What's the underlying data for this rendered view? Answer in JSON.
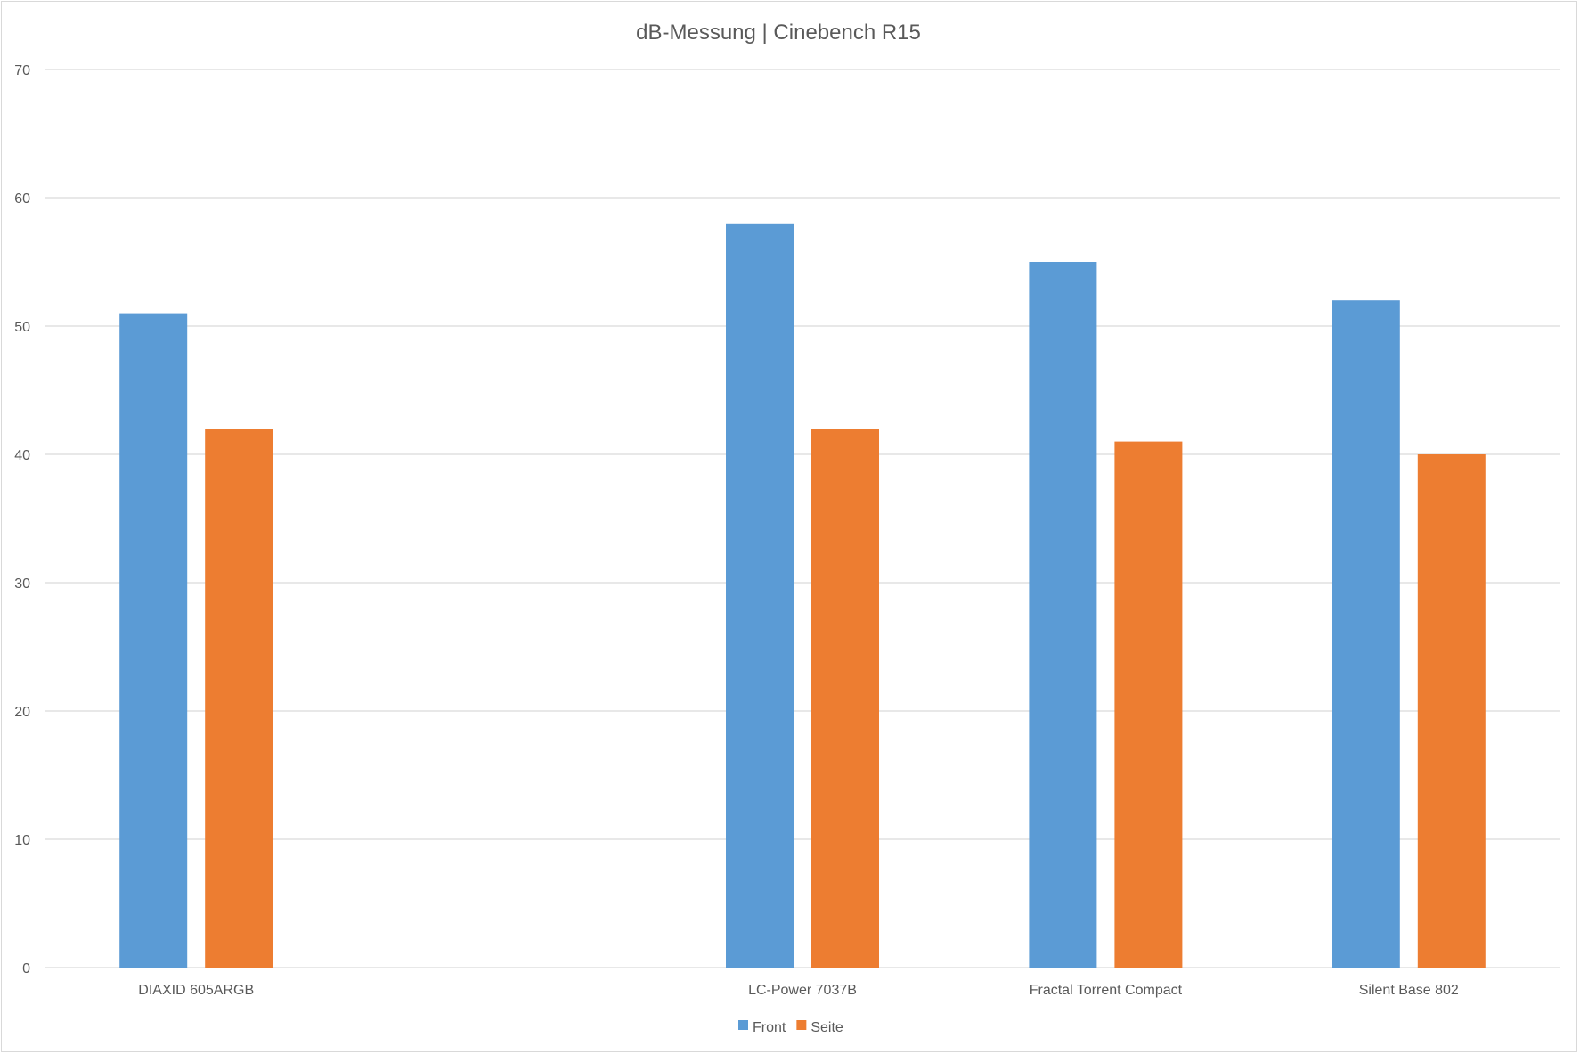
{
  "chart_data": {
    "type": "bar",
    "title": "dB-Messung | Cinebench R15",
    "xlabel": "",
    "ylabel": "",
    "categories": [
      "DIAXID 605ARGB",
      "",
      "LC-Power 7037B",
      "Fractal Torrent Compact",
      "Silent Base 802"
    ],
    "series": [
      {
        "name": "Front",
        "color": "#5b9bd5",
        "values": [
          51,
          null,
          58,
          55,
          52
        ]
      },
      {
        "name": "Seite",
        "color": "#ed7d31",
        "values": [
          42,
          null,
          42,
          41,
          40
        ]
      }
    ],
    "ylim": [
      0,
      70
    ],
    "yticks": [
      0,
      10,
      20,
      30,
      40,
      50,
      60,
      70
    ],
    "grid": true,
    "legend": "bottom-center",
    "colors": {
      "gridline": "#d9d9d9",
      "text": "#595959"
    }
  }
}
